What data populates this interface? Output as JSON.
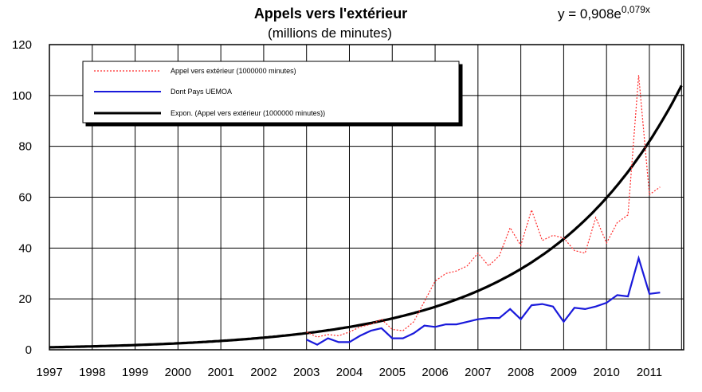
{
  "chart_data": {
    "type": "line",
    "title": "Appels vers l'extérieur",
    "subtitle": "(millions de minutes)",
    "equation": {
      "prefix": "y = 0,908e",
      "exponent": "0,079x"
    },
    "xlabel": "",
    "ylabel": "",
    "xlim": [
      1997,
      2011.8
    ],
    "ylim": [
      0,
      120
    ],
    "x_ticks": [
      "1997",
      "1998",
      "1999",
      "2000",
      "2001",
      "2002",
      "2003",
      "2004",
      "2005",
      "2006",
      "2007",
      "2008",
      "2009",
      "2010",
      "2011"
    ],
    "y_ticks": [
      "0",
      "20",
      "40",
      "60",
      "80",
      "100",
      "120"
    ],
    "grid": true,
    "legend_position": "top-left",
    "series": [
      {
        "name": "Appel vers extérieur (1000000 minutes)",
        "color": "#ff2a2a",
        "style": "dotted",
        "x": [
          2003.0,
          2003.25,
          2003.5,
          2003.75,
          2004.0,
          2004.25,
          2004.5,
          2004.75,
          2005.0,
          2005.25,
          2005.5,
          2005.75,
          2006.0,
          2006.25,
          2006.5,
          2006.75,
          2007.0,
          2007.25,
          2007.5,
          2007.75,
          2008.0,
          2008.25,
          2008.5,
          2008.75,
          2009.0,
          2009.25,
          2009.5,
          2009.75,
          2010.0,
          2010.25,
          2010.5,
          2010.75,
          2011.0,
          2011.25
        ],
        "values": [
          7,
          5,
          6,
          5.5,
          7,
          9,
          10,
          12,
          8,
          7.5,
          11,
          19,
          27,
          30,
          31,
          33,
          38,
          33,
          37,
          48,
          41,
          55,
          43,
          45,
          44,
          39,
          38,
          52,
          42,
          50,
          53,
          108,
          61,
          64
        ]
      },
      {
        "name": "Dont Pays UEMOA",
        "color": "#1a1adb",
        "style": "solid",
        "x": [
          2003.0,
          2003.25,
          2003.5,
          2003.75,
          2004.0,
          2004.25,
          2004.5,
          2004.75,
          2005.0,
          2005.25,
          2005.5,
          2005.75,
          2006.0,
          2006.25,
          2006.5,
          2006.75,
          2007.0,
          2007.25,
          2007.5,
          2007.75,
          2008.0,
          2008.25,
          2008.5,
          2008.75,
          2009.0,
          2009.25,
          2009.5,
          2009.75,
          2010.0,
          2010.25,
          2010.5,
          2010.75,
          2011.0,
          2011.25
        ],
        "values": [
          4,
          2,
          4.5,
          3,
          3,
          5.5,
          7.5,
          8.5,
          4.5,
          4.5,
          6.5,
          9.5,
          9,
          10,
          10,
          11,
          12,
          12.5,
          12.5,
          16,
          12,
          17.5,
          18,
          17,
          11,
          16.5,
          16,
          17,
          18.5,
          21.5,
          21,
          36,
          22,
          22.5
        ]
      },
      {
        "name": "Expon. (Appel vers extérieur (1000000 minutes))",
        "color": "#000000",
        "style": "solid-thick",
        "equation": {
          "a": 0.908,
          "b": 0.079,
          "x_origin_year": 1997,
          "points_per_year": 4
        }
      }
    ]
  }
}
